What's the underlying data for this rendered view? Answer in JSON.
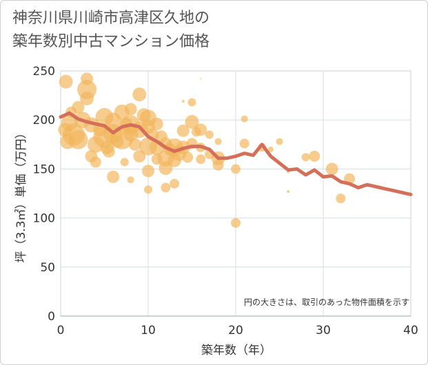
{
  "title_line1": "神奈川県川崎市高津区久地の",
  "title_line2": "築年数別中古マンション価格",
  "chart_data": {
    "type": "scatter",
    "xlabel": "築年数（年）",
    "ylabel": "坪（3.3㎡）単価（万円）",
    "xlim": [
      0,
      40
    ],
    "ylim": [
      0,
      250
    ],
    "xticks": [
      0,
      10,
      20,
      30,
      40
    ],
    "yticks": [
      0,
      50,
      100,
      150,
      200,
      250
    ],
    "grid": true,
    "note": "円の大きさは、取引のあった物件面積を示す",
    "colors": {
      "bubble": "#f2b65a",
      "line": "#d4705a",
      "grid": "#d6dde4",
      "plot_border": "#c8d0d8"
    },
    "points": [
      {
        "x": 0.5,
        "y": 190,
        "s": 10
      },
      {
        "x": 0.8,
        "y": 178,
        "s": 11
      },
      {
        "x": 0.6,
        "y": 239,
        "s": 10
      },
      {
        "x": 1,
        "y": 197,
        "s": 12
      },
      {
        "x": 1.2,
        "y": 208,
        "s": 8
      },
      {
        "x": 1.5,
        "y": 185,
        "s": 16
      },
      {
        "x": 2,
        "y": 213,
        "s": 9
      },
      {
        "x": 2,
        "y": 180,
        "s": 14
      },
      {
        "x": 2.5,
        "y": 200,
        "s": 12
      },
      {
        "x": 3,
        "y": 242,
        "s": 9
      },
      {
        "x": 3,
        "y": 231,
        "s": 14
      },
      {
        "x": 3,
        "y": 222,
        "s": 10
      },
      {
        "x": 3.5,
        "y": 195,
        "s": 11
      },
      {
        "x": 3.5,
        "y": 163,
        "s": 9
      },
      {
        "x": 4,
        "y": 175,
        "s": 12
      },
      {
        "x": 4,
        "y": 157,
        "s": 8
      },
      {
        "x": 4.5,
        "y": 190,
        "s": 10
      },
      {
        "x": 5,
        "y": 203,
        "s": 13
      },
      {
        "x": 5,
        "y": 183,
        "s": 16
      },
      {
        "x": 5.3,
        "y": 172,
        "s": 10
      },
      {
        "x": 5.5,
        "y": 168,
        "s": 9
      },
      {
        "x": 6,
        "y": 199,
        "s": 12
      },
      {
        "x": 6,
        "y": 186,
        "s": 14
      },
      {
        "x": 6,
        "y": 142,
        "s": 9
      },
      {
        "x": 6.5,
        "y": 178,
        "s": 9
      },
      {
        "x": 7,
        "y": 208,
        "s": 11
      },
      {
        "x": 7,
        "y": 182,
        "s": 17
      },
      {
        "x": 7.3,
        "y": 157,
        "s": 6
      },
      {
        "x": 7.5,
        "y": 196,
        "s": 9
      },
      {
        "x": 8,
        "y": 211,
        "s": 9
      },
      {
        "x": 8,
        "y": 195,
        "s": 14
      },
      {
        "x": 8,
        "y": 186,
        "s": 11
      },
      {
        "x": 8,
        "y": 139,
        "s": 5
      },
      {
        "x": 8.5,
        "y": 175,
        "s": 9
      },
      {
        "x": 9,
        "y": 226,
        "s": 10
      },
      {
        "x": 9,
        "y": 190,
        "s": 12
      },
      {
        "x": 9,
        "y": 163,
        "s": 9
      },
      {
        "x": 9.5,
        "y": 205,
        "s": 10
      },
      {
        "x": 10,
        "y": 202,
        "s": 12
      },
      {
        "x": 10,
        "y": 193,
        "s": 10
      },
      {
        "x": 10,
        "y": 173,
        "s": 13
      },
      {
        "x": 10,
        "y": 148,
        "s": 9
      },
      {
        "x": 10,
        "y": 129,
        "s": 6
      },
      {
        "x": 10.5,
        "y": 185,
        "s": 9
      },
      {
        "x": 11,
        "y": 196,
        "s": 9
      },
      {
        "x": 11,
        "y": 172,
        "s": 11
      },
      {
        "x": 11,
        "y": 160,
        "s": 8
      },
      {
        "x": 11.5,
        "y": 183,
        "s": 9
      },
      {
        "x": 12,
        "y": 176,
        "s": 9
      },
      {
        "x": 12,
        "y": 161,
        "s": 12
      },
      {
        "x": 12,
        "y": 151,
        "s": 10
      },
      {
        "x": 12,
        "y": 131,
        "s": 7
      },
      {
        "x": 12.5,
        "y": 170,
        "s": 9
      },
      {
        "x": 13,
        "y": 172,
        "s": 13
      },
      {
        "x": 13,
        "y": 159,
        "s": 10
      },
      {
        "x": 13,
        "y": 135,
        "s": 7
      },
      {
        "x": 13.5,
        "y": 166,
        "s": 11
      },
      {
        "x": 14,
        "y": 189,
        "s": 9
      },
      {
        "x": 14,
        "y": 172,
        "s": 10
      },
      {
        "x": 14,
        "y": 219,
        "s": 2
      },
      {
        "x": 14.5,
        "y": 162,
        "s": 8
      },
      {
        "x": 15,
        "y": 198,
        "s": 10
      },
      {
        "x": 15,
        "y": 218,
        "s": 6
      },
      {
        "x": 15,
        "y": 176,
        "s": 8
      },
      {
        "x": 15.5,
        "y": 188,
        "s": 7
      },
      {
        "x": 16,
        "y": 190,
        "s": 9
      },
      {
        "x": 16,
        "y": 172,
        "s": 7
      },
      {
        "x": 16,
        "y": 160,
        "s": 7
      },
      {
        "x": 16,
        "y": 242,
        "s": 1
      },
      {
        "x": 17,
        "y": 185,
        "s": 6
      },
      {
        "x": 17,
        "y": 165,
        "s": 7
      },
      {
        "x": 18,
        "y": 178,
        "s": 5
      },
      {
        "x": 18,
        "y": 161,
        "s": 10
      },
      {
        "x": 18,
        "y": 154,
        "s": 8
      },
      {
        "x": 20,
        "y": 150,
        "s": 7
      },
      {
        "x": 20,
        "y": 95,
        "s": 7
      },
      {
        "x": 21,
        "y": 176,
        "s": 7
      },
      {
        "x": 21,
        "y": 201,
        "s": 5
      },
      {
        "x": 23,
        "y": 172,
        "s": 6
      },
      {
        "x": 24,
        "y": 170,
        "s": 4
      },
      {
        "x": 25,
        "y": 178,
        "s": 5
      },
      {
        "x": 26,
        "y": 147,
        "s": 2
      },
      {
        "x": 26,
        "y": 127,
        "s": 2
      },
      {
        "x": 28,
        "y": 162,
        "s": 6
      },
      {
        "x": 29,
        "y": 163,
        "s": 8
      },
      {
        "x": 31,
        "y": 150,
        "s": 9
      },
      {
        "x": 32,
        "y": 120,
        "s": 7
      },
      {
        "x": 33,
        "y": 140,
        "s": 8
      }
    ],
    "line": {
      "x": [
        0,
        1,
        2,
        3,
        4,
        5,
        6,
        7,
        8,
        9,
        10,
        11,
        12,
        13,
        14,
        15,
        16,
        17,
        18,
        19,
        20,
        21,
        22,
        23,
        24,
        25,
        26,
        27,
        28,
        29,
        30,
        31,
        32,
        33,
        34,
        35,
        36,
        37,
        38,
        39,
        40
      ],
      "y": [
        203,
        207,
        201,
        198,
        196,
        194,
        187,
        193,
        195,
        193,
        183,
        178,
        172,
        168,
        171,
        173,
        173,
        170,
        161,
        161,
        163,
        166,
        164,
        175,
        163,
        156,
        149,
        150,
        144,
        149,
        142,
        143,
        137,
        135,
        131,
        134,
        132,
        130,
        128,
        126,
        124
      ]
    }
  }
}
